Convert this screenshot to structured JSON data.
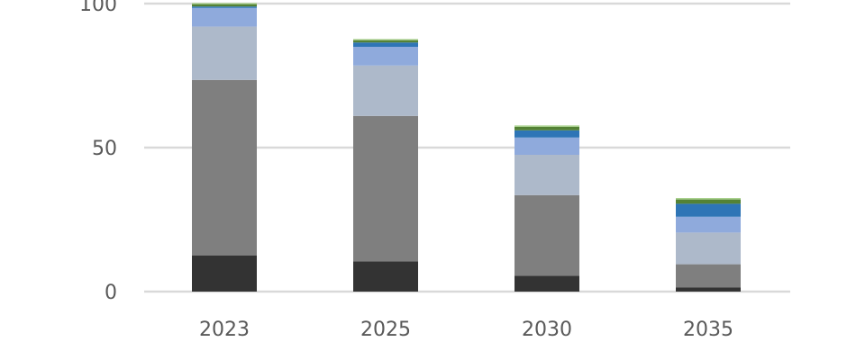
{
  "chart_data": {
    "type": "bar",
    "stacked": true,
    "title": "",
    "xlabel": "",
    "ylabel": "",
    "ylim": [
      0,
      100
    ],
    "yticks": [
      0,
      50,
      100
    ],
    "grid": true,
    "categories": [
      "2023",
      "2025",
      "2030",
      "2035"
    ],
    "series": [
      {
        "color": "#333333",
        "values": [
          12.5,
          10.5,
          5.5,
          1.5
        ]
      },
      {
        "color": "#7f7f7f",
        "values": [
          61,
          50.5,
          28,
          8
        ]
      },
      {
        "color": "#adb9ca",
        "values": [
          18.5,
          17.5,
          14,
          11
        ]
      },
      {
        "color": "#8faadc",
        "values": [
          6.5,
          6.5,
          6,
          5.5
        ]
      },
      {
        "color": "#2e75b6",
        "values": [
          0.5,
          1.5,
          2.5,
          4.5
        ]
      },
      {
        "color": "#548235",
        "values": [
          0.8,
          0.8,
          1.2,
          1.5
        ]
      },
      {
        "color": "#a9d18e",
        "values": [
          0.4,
          0.4,
          0.5,
          0.5
        ]
      }
    ]
  }
}
